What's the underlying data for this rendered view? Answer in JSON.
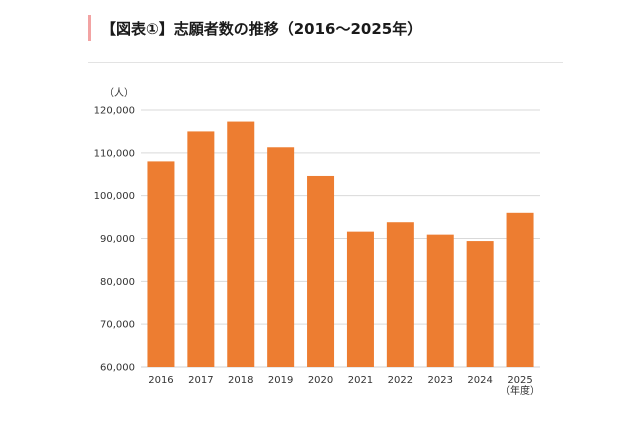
{
  "header": {
    "title": "【図表①】志願者数の推移（2016〜2025年）"
  },
  "chart_data": {
    "type": "bar",
    "ylabel": "（人）",
    "xlabel": "（年度）",
    "categories": [
      "2016",
      "2017",
      "2018",
      "2019",
      "2020",
      "2021",
      "2022",
      "2023",
      "2024",
      "2025"
    ],
    "values": [
      108000,
      115000,
      117300,
      111300,
      104600,
      91600,
      93800,
      90900,
      89400,
      96000
    ],
    "ylim": [
      60000,
      120000
    ],
    "yticks": [
      60000,
      70000,
      80000,
      90000,
      100000,
      110000,
      120000
    ],
    "ytick_labels": [
      "60,000",
      "70,000",
      "80,000",
      "90,000",
      "100,000",
      "110,000",
      "120,000"
    ],
    "grid": true,
    "bar_color": "#ed7d31",
    "grid_color": "#d9d9d9"
  }
}
